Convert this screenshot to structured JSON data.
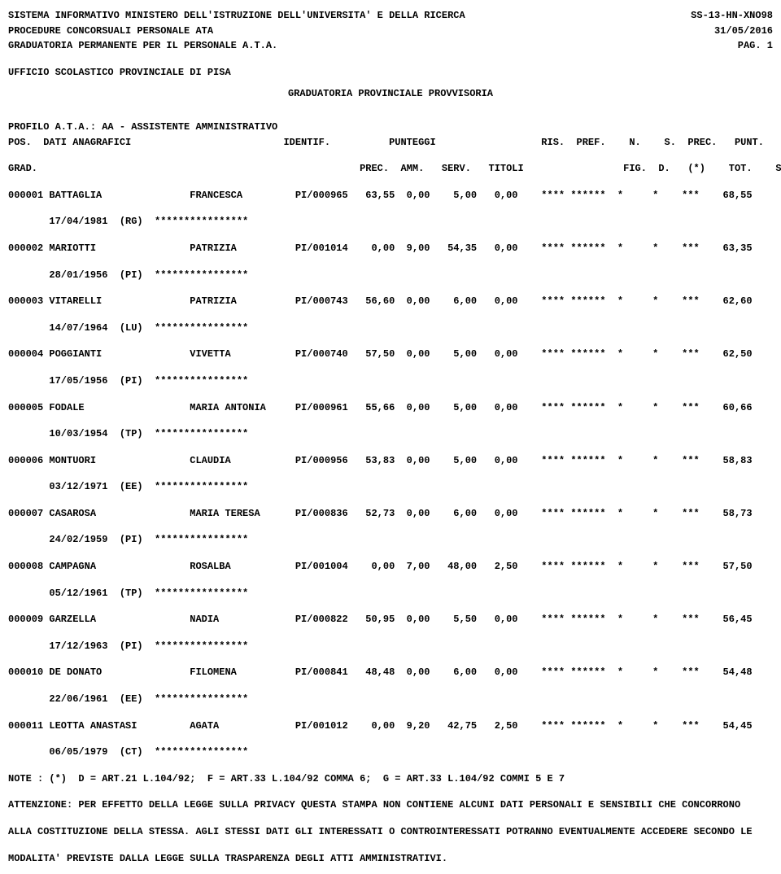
{
  "header": {
    "line1_left": "SISTEMA INFORMATIVO MINISTERO DELL'ISTRUZIONE DELL'UNIVERSITA' E DELLA RICERCA",
    "line1_right": "SS-13-HN-XNO98",
    "line2_left": "PROCEDURE CONCORSUALI PERSONALE ATA",
    "line2_right": "31/05/2016",
    "line3_left": "GRADUATORIA PERMANENTE PER IL PERSONALE A.T.A.",
    "line3_right": "PAG.   1",
    "ufficio": "UFFICIO SCOLASTICO PROVINCIALE DI PISA",
    "title": "GRADUATORIA PROVINCIALE PROVVISORIA",
    "profilo": "PROFILO A.T.A.: AA - ASSISTENTE AMMINISTRATIVO"
  },
  "columns": {
    "header1": "POS.  DATI ANAGRAFICI                          IDENTIF.          PUNTEGGI                  RIS.  PREF.    N.    S.  PREC.   PUNT.   RIN.  PAT",
    "header2": "GRAD.                                                       PREC.  AMM.   SERV.   TITOLI                 FIG.  D.   (*)    TOT.    SUP."
  },
  "rows": [
    {
      "line1": "000001 BATTAGLIA               FRANCESCA         PI/000965   63,55  0,00    5,00   0,00    **** ******  *     *    ***    68,55",
      "line2": "       17/04/1981  (RG)  ****************"
    },
    {
      "line1": "000002 MARIOTTI                PATRIZIA          PI/001014    0,00  9,00   54,35   0,00    **** ******  *     *    ***    63,35",
      "line2": "       28/01/1956  (PI)  ****************"
    },
    {
      "line1": "000003 VITARELLI               PATRIZIA          PI/000743   56,60  0,00    6,00   0,00    **** ******  *     *    ***    62,60",
      "line2": "       14/07/1964  (LU)  ****************"
    },
    {
      "line1": "000004 POGGIANTI               VIVETTA           PI/000740   57,50  0,00    5,00   0,00    **** ******  *     *    ***    62,50",
      "line2": "       17/05/1956  (PI)  ****************"
    },
    {
      "line1": "000005 FODALE                  MARIA ANTONIA     PI/000961   55,66  0,00    5,00   0,00    **** ******  *     *    ***    60,66",
      "line2": "       10/03/1954  (TP)  ****************"
    },
    {
      "line1": "000006 MONTUORI                CLAUDIA           PI/000956   53,83  0,00    5,00   0,00    **** ******  *     *    ***    58,83",
      "line2": "       03/12/1971  (EE)  ****************"
    },
    {
      "line1": "000007 CASAROSA                MARIA TERESA      PI/000836   52,73  0,00    6,00   0,00    **** ******  *     *    ***    58,73",
      "line2": "       24/02/1959  (PI)  ****************"
    },
    {
      "line1": "000008 CAMPAGNA                ROSALBA           PI/001004    0,00  7,00   48,00   2,50    **** ******  *     *    ***    57,50",
      "line2": "       05/12/1961  (TP)  ****************"
    },
    {
      "line1": "000009 GARZELLA                NADIA             PI/000822   50,95  0,00    5,50   0,00    **** ******  *     *    ***    56,45",
      "line2": "       17/12/1963  (PI)  ****************"
    },
    {
      "line1": "000010 DE DONATO               FILOMENA          PI/000841   48,48  0,00    6,00   0,00    **** ******  *     *    ***    54,48",
      "line2": "       22/06/1961  (EE)  ****************"
    },
    {
      "line1": "000011 LEOTTA ANASTASI         AGATA             PI/001012    0,00  9,20   42,75   2,50    **** ******  *     *    ***    54,45",
      "line2": "       06/05/1979  (CT)  ****************"
    }
  ],
  "footer": {
    "note": "NOTE : (*)  D = ART.21 L.104/92;  F = ART.33 L.104/92 COMMA 6;  G = ART.33 L.104/92 COMMI 5 E 7",
    "attenzione1": "ATTENZIONE: PER EFFETTO DELLA LEGGE SULLA PRIVACY QUESTA STAMPA NON CONTIENE ALCUNI DATI PERSONALI E SENSIBILI CHE CONCORRONO",
    "attenzione2": "ALLA COSTITUZIONE DELLA STESSA. AGLI STESSI DATI GLI INTERESSATI O CONTROINTERESSATI POTRANNO EVENTUALMENTE ACCEDERE SECONDO LE",
    "attenzione3": "MODALITA' PREVISTE DALLA LEGGE SULLA TRASPARENZA DEGLI ATTI AMMINISTRATIVI."
  }
}
